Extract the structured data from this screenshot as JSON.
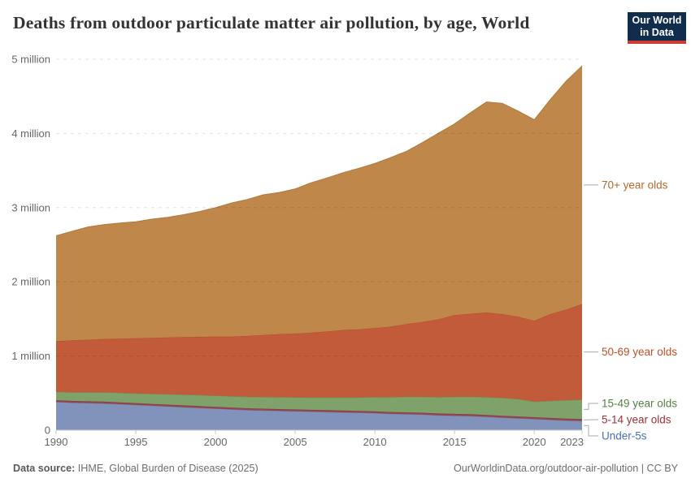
{
  "header": {
    "title": "Deaths from outdoor particulate matter air pollution, by age, World"
  },
  "logo": {
    "line1": "Our World",
    "line2": "in Data",
    "bg_color": "#102D4E",
    "bar_color": "#CF3D32"
  },
  "footer": {
    "data_source_label": "Data source:",
    "data_source_text": " IHME, Global Burden of Disease (2025)",
    "attribution": "OurWorldinData.org/outdoor-air-pollution | CC BY"
  },
  "chart_data": {
    "type": "area",
    "stacked": true,
    "title": "Deaths from outdoor particulate matter air pollution, by age, World",
    "xlabel": "",
    "ylabel": "",
    "unit": "million deaths per year",
    "grid": "horizontal-dashed",
    "legend_position": "right",
    "xlim": [
      1990,
      2023
    ],
    "ylim": [
      0,
      5
    ],
    "x_ticks": [
      1990,
      1995,
      2000,
      2005,
      2010,
      2015,
      2020,
      2023
    ],
    "y_ticks": [
      {
        "value": 0,
        "label": "0"
      },
      {
        "value": 1,
        "label": "1 million"
      },
      {
        "value": 2,
        "label": "2 million"
      },
      {
        "value": 3,
        "label": "3 million"
      },
      {
        "value": 4,
        "label": "4 million"
      },
      {
        "value": 5,
        "label": "5 million"
      }
    ],
    "x": [
      1990,
      1991,
      1992,
      1993,
      1994,
      1995,
      1996,
      1997,
      1998,
      1999,
      2000,
      2001,
      2002,
      2003,
      2004,
      2005,
      2006,
      2007,
      2008,
      2009,
      2010,
      2011,
      2012,
      2013,
      2014,
      2015,
      2016,
      2017,
      2018,
      2019,
      2020,
      2021,
      2022,
      2023
    ],
    "series": [
      {
        "name": "under-5s",
        "label": "Under-5s",
        "color": "#8293BB",
        "edge": "#6D80AC",
        "label_color": "#4C6FB8",
        "values": [
          0.38,
          0.37,
          0.365,
          0.36,
          0.35,
          0.34,
          0.33,
          0.32,
          0.31,
          0.3,
          0.29,
          0.28,
          0.27,
          0.265,
          0.26,
          0.255,
          0.25,
          0.245,
          0.24,
          0.235,
          0.23,
          0.22,
          0.215,
          0.21,
          0.2,
          0.195,
          0.19,
          0.18,
          0.17,
          0.16,
          0.15,
          0.14,
          0.13,
          0.125
        ]
      },
      {
        "name": "5-14",
        "label": "5-14 year olds",
        "color": "#96454F",
        "edge": "#853A44",
        "label_color": "#A03238",
        "values": [
          0.025,
          0.025,
          0.025,
          0.025,
          0.025,
          0.025,
          0.025,
          0.025,
          0.025,
          0.025,
          0.025,
          0.025,
          0.025,
          0.025,
          0.025,
          0.025,
          0.025,
          0.025,
          0.025,
          0.025,
          0.025,
          0.025,
          0.025,
          0.025,
          0.025,
          0.025,
          0.025,
          0.025,
          0.025,
          0.025,
          0.025,
          0.025,
          0.025,
          0.025
        ]
      },
      {
        "name": "15-49",
        "label": "15-49 year olds",
        "color": "#7FA16A",
        "edge": "#6E9159",
        "label_color": "#568045",
        "values": [
          0.11,
          0.115,
          0.12,
          0.125,
          0.128,
          0.13,
          0.135,
          0.14,
          0.145,
          0.148,
          0.15,
          0.152,
          0.155,
          0.158,
          0.16,
          0.162,
          0.165,
          0.17,
          0.175,
          0.18,
          0.19,
          0.2,
          0.21,
          0.215,
          0.22,
          0.23,
          0.235,
          0.24,
          0.24,
          0.235,
          0.21,
          0.23,
          0.25,
          0.26
        ]
      },
      {
        "name": "50-69",
        "label": "50-69 year olds",
        "color": "#C25B39",
        "edge": "#B14E2F",
        "label_color": "#BF4F27",
        "values": [
          0.685,
          0.7,
          0.71,
          0.72,
          0.73,
          0.745,
          0.755,
          0.765,
          0.775,
          0.785,
          0.795,
          0.805,
          0.82,
          0.835,
          0.85,
          0.86,
          0.875,
          0.89,
          0.91,
          0.92,
          0.93,
          0.95,
          0.98,
          1.01,
          1.05,
          1.1,
          1.12,
          1.14,
          1.13,
          1.11,
          1.09,
          1.17,
          1.22,
          1.29
        ]
      },
      {
        "name": "70-plus",
        "label": "70+ year olds",
        "color": "#BF8749",
        "edge": "#AF7A3C",
        "label_color": "#B4692D",
        "values": [
          1.42,
          1.47,
          1.52,
          1.54,
          1.56,
          1.57,
          1.6,
          1.62,
          1.65,
          1.69,
          1.74,
          1.8,
          1.84,
          1.89,
          1.91,
          1.95,
          2.02,
          2.07,
          2.12,
          2.17,
          2.22,
          2.28,
          2.33,
          2.42,
          2.51,
          2.58,
          2.71,
          2.84,
          2.84,
          2.77,
          2.71,
          2.89,
          3.08,
          3.21
        ]
      }
    ]
  }
}
